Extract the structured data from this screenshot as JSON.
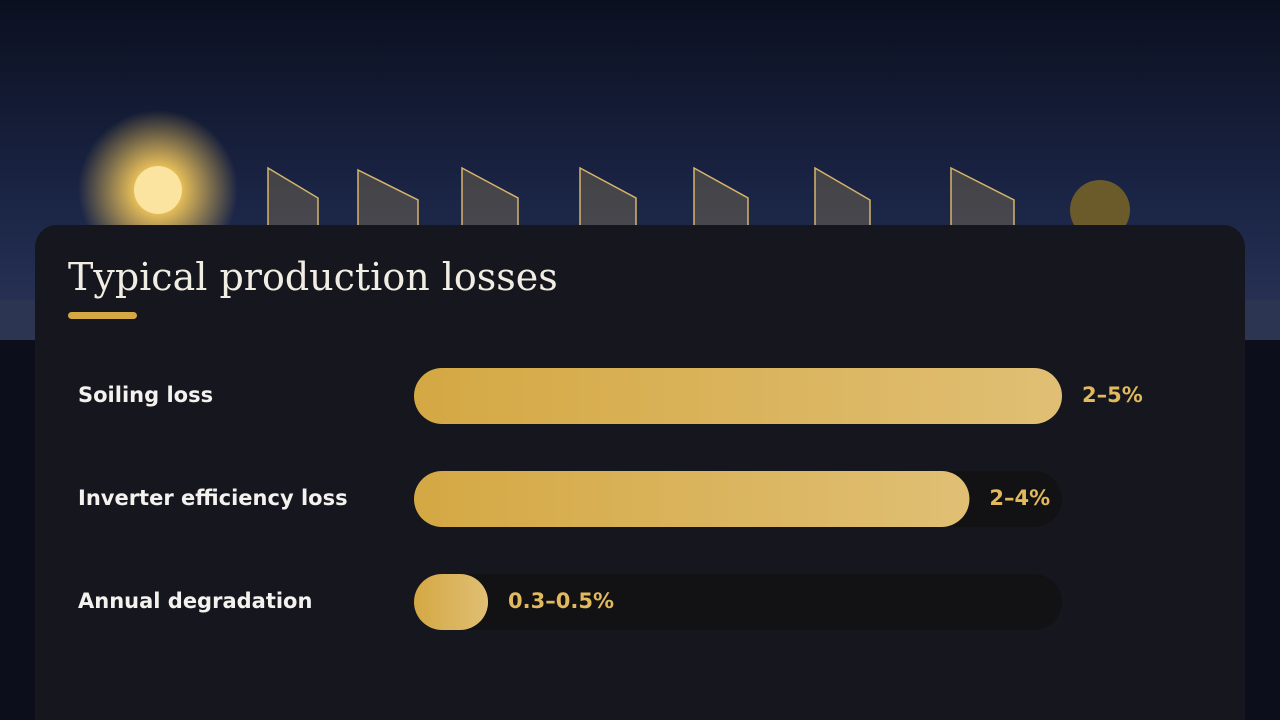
{
  "chart_data": {
    "type": "hbar",
    "title": "Typical production losses",
    "categories": [
      "Soiling loss",
      "Inverter efficiency loss",
      "Annual degradation"
    ],
    "values": [
      3.5,
      3,
      0.4
    ],
    "value_labels": [
      "2–5%",
      "2–4%",
      "0.3–0.5%"
    ],
    "xlim": [
      0,
      3.5
    ],
    "color": "#d4a843"
  }
}
